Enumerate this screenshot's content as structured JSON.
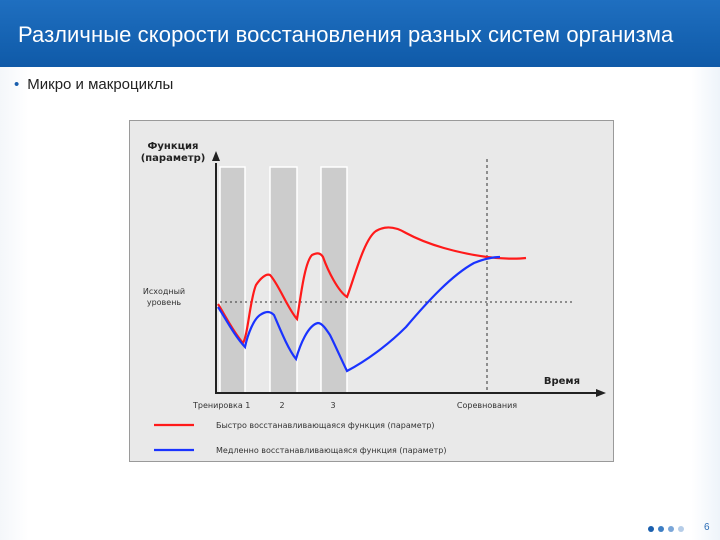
{
  "slide": {
    "title": "Различные скорости восстановления разных систем организма",
    "bullet": "Микро и макроциклы",
    "page_number": "6"
  },
  "figure": {
    "y_axis_label_line1": "Функция",
    "y_axis_label_line2": "(параметр)",
    "baseline_label_line1": "Исходный",
    "baseline_label_line2": "уровень",
    "x_axis_label": "Время",
    "phase_labels": [
      "Тренировка 1",
      "2",
      "3",
      "Соревнования"
    ],
    "legend": [
      {
        "label": "Быстро восстанавливающаяся функция (параметр)",
        "color": "#ff1a1a"
      },
      {
        "label": "Медленно восстанавливающаяся функция (параметр)",
        "color": "#1a33ff"
      }
    ]
  },
  "colors": {
    "header": "#1262b3",
    "fast_curve": "#ff1a1a",
    "slow_curve": "#1a33ff",
    "training_bar": "#cccccc"
  },
  "icons": {
    "bullet": "bullet-dot",
    "pager": "pager-dots-icon"
  }
}
